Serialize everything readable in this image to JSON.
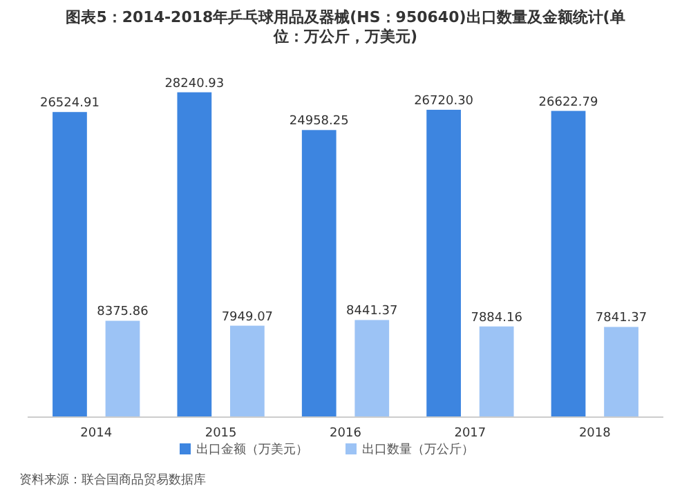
{
  "chart_data": {
    "type": "bar",
    "title": "图表5：2014-2018年乒乓球用品及器械(HS：950640)出口数量及金额统计(单位：万公斤，万美元)",
    "categories": [
      "2014",
      "2015",
      "2016",
      "2017",
      "2018"
    ],
    "series": [
      {
        "name": "出口金额（万美元）",
        "color": "#3d85e0",
        "values": [
          26524.91,
          28240.93,
          24958.25,
          26720.3,
          26622.79
        ],
        "value_labels": [
          "26524.91",
          "28240.93",
          "24958.25",
          "26720.30",
          "26622.79"
        ]
      },
      {
        "name": "出口数量（万公斤）",
        "color": "#9cc3f5",
        "values": [
          8375.86,
          7949.07,
          8441.37,
          7884.16,
          7841.37
        ]
      }
    ],
    "data_labels": true,
    "legend": "bottom",
    "grid": false,
    "annotations": [
      "资料来源：联合国商品贸易数据库"
    ]
  }
}
